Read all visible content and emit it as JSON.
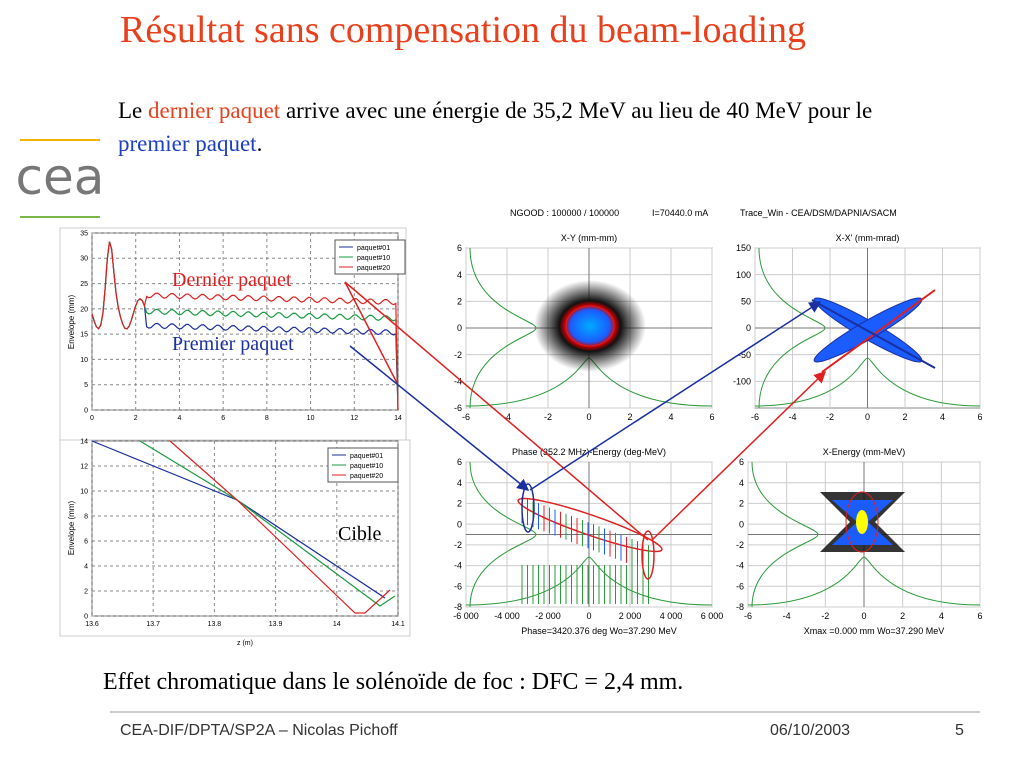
{
  "title": "Résultat sans compensation du beam-loading",
  "intro": [
    "Le ",
    "dernier paquet",
    " arrive avec une énergie de 35,2 MeV au lieu de 40 MeV pour le ",
    "premier paquet",
    "."
  ],
  "logo": "cea",
  "annotations": {
    "dernier": "Dernier paquet",
    "premier": "Premier paquet",
    "cible": "Cible"
  },
  "plots": {
    "env_top": {
      "ylabel": "Envelope (mm)",
      "yticks": [
        0,
        5,
        10,
        15,
        20,
        25,
        30,
        35
      ],
      "xticks": [
        0,
        2,
        4,
        6,
        8,
        10,
        12,
        14
      ],
      "legend": [
        "paquet#01",
        "paquet#10",
        "paquet#20"
      ]
    },
    "env_bottom": {
      "ylabel": "Envelope (mm)",
      "xlabel": "z (m)",
      "yticks": [
        0,
        2,
        4,
        6,
        8,
        10,
        12,
        14
      ],
      "xticks": [
        "13.6",
        "13.7",
        "13.8",
        "13.9",
        "14",
        "14.1"
      ],
      "legend": [
        "paquet#01",
        "paquet#10",
        "paquet#20"
      ]
    },
    "tracewin": {
      "header": [
        "NGOOD : 100000 / 100000",
        "I=70440.0 mA",
        "Trace_Win - CEA/DSM/DAPNIA/SACM"
      ],
      "panels": [
        {
          "title": "X-Y (mm-mm)",
          "yticks": [
            -6,
            -4,
            -2,
            0,
            2,
            4,
            6
          ],
          "xticks": [
            -6,
            -4,
            -2,
            0,
            2,
            4,
            6
          ]
        },
        {
          "title": "X-X' (mm-mrad)",
          "yticks": [
            -100,
            -50,
            0,
            50,
            100,
            150
          ],
          "xticks": [
            -6,
            -4,
            -2,
            0,
            2,
            4,
            6
          ]
        },
        {
          "title": "Phase (352.2 MHz)-Energy (deg-MeV)",
          "yticks": [
            -8,
            -6,
            -4,
            -2,
            0,
            2,
            4,
            6
          ],
          "xticks": [
            "-6 000",
            "-4 000",
            "-2 000",
            "0",
            "2 000",
            "4 000",
            "6 000"
          ],
          "footer": "Phase=3420.376 deg  Wo=37.290 MeV"
        },
        {
          "title": "X-Energy (mm-MeV)",
          "yticks": [
            -8,
            -6,
            -4,
            -2,
            0,
            2,
            4,
            6
          ],
          "xticks": [
            -6,
            -4,
            -2,
            0,
            2,
            4,
            6
          ],
          "footer": "Xmax =0.000 mm  Wo=37.290 MeV"
        }
      ]
    }
  },
  "conclusion": "Effet chromatique dans le solénoïde de foc : DFC = 2,4 mm.",
  "footer": {
    "left": "CEA-DIF/DPTA/SP2A – Nicolas Pichoff",
    "date": "06/10/2003",
    "page": "5"
  }
}
